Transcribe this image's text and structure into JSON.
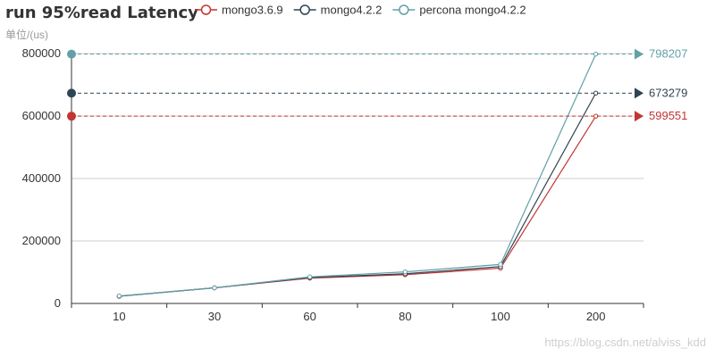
{
  "chart_data": {
    "type": "line",
    "title": "run 95%read Latency",
    "unit_label": "单位/(us)",
    "categories": [
      "10",
      "30",
      "60",
      "80",
      "100",
      "200"
    ],
    "ylim": [
      0,
      800000
    ],
    "y_ticks": [
      0,
      200000,
      400000,
      600000,
      800000
    ],
    "y_tick_labels": [
      "0",
      "200000",
      "400000",
      "600000",
      "800000"
    ],
    "grid": true,
    "legend_position": "top",
    "series": [
      {
        "name": "mongo3.6.9",
        "color": "#c23531",
        "values": [
          23000,
          50000,
          81000,
          92000,
          113000,
          599551
        ],
        "max_label": "599551"
      },
      {
        "name": "mongo4.2.2",
        "color": "#2f4554",
        "values": [
          23000,
          50000,
          83000,
          95000,
          118000,
          673279
        ],
        "max_label": "673279"
      },
      {
        "name": "percona mongo4.2.2",
        "color": "#61a0a8",
        "values": [
          24000,
          50000,
          85000,
          101000,
          125000,
          798207
        ],
        "max_label": "798207"
      }
    ]
  },
  "watermark": "https://blog.csdn.net/alviss_kdd"
}
